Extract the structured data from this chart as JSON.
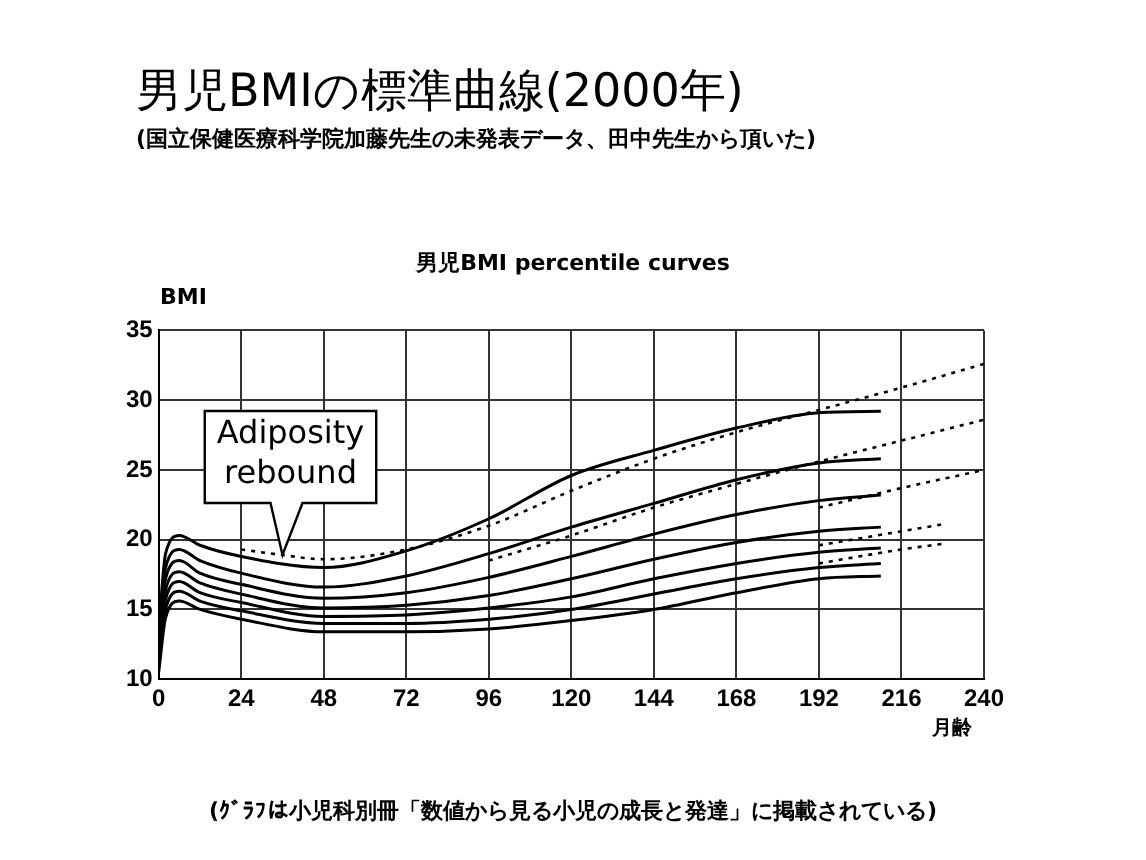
{
  "chart_data": {
    "type": "line",
    "title": "男児BMIの標準曲線(2000年)",
    "subtitle": "(国立保健医療科学院加藤先生の未発表データ、田中先生から頂いた)",
    "xlabel": "月齢",
    "ylabel": "BMI",
    "annotations": [
      "男児BMI percentile curves",
      {
        "text": "Adiposity rebound",
        "x": 36,
        "y": 18.9
      },
      "(ｸﾞﾗﾌは小児科別冊「数値から見る小児の成長と発達」に掲載されている)"
    ],
    "xlim": [
      0,
      240
    ],
    "xticks": [
      0,
      24,
      48,
      72,
      96,
      120,
      144,
      168,
      192,
      216,
      240
    ],
    "ylim": [
      10,
      35
    ],
    "yticks": [
      10,
      15,
      20,
      25,
      30,
      35
    ],
    "grid": true,
    "legend": false,
    "marker": "none",
    "series": [
      {
        "color": "#000000",
        "line_style": "solid",
        "x": [
          0,
          2,
          6,
          12,
          24,
          48,
          72,
          96,
          120,
          144,
          168,
          192,
          210
        ],
        "values": [
          13.5,
          19.0,
          20.3,
          19.6,
          18.8,
          18.0,
          19.2,
          21.5,
          24.6,
          26.4,
          28.0,
          29.1,
          29.2
        ]
      },
      {
        "color": "#000000",
        "line_style": "solid",
        "x": [
          0,
          2,
          6,
          12,
          24,
          48,
          72,
          96,
          120,
          144,
          168,
          192,
          210
        ],
        "values": [
          13.0,
          18.0,
          19.3,
          18.5,
          17.6,
          16.6,
          17.4,
          19.0,
          20.9,
          22.6,
          24.3,
          25.5,
          25.8
        ]
      },
      {
        "color": "#000000",
        "line_style": "solid",
        "x": [
          0,
          2,
          6,
          12,
          24,
          48,
          72,
          96,
          120,
          144,
          168,
          192,
          210
        ],
        "values": [
          12.5,
          17.2,
          18.5,
          17.6,
          16.8,
          15.8,
          16.2,
          17.3,
          18.8,
          20.4,
          21.8,
          22.8,
          23.2
        ]
      },
      {
        "color": "#000000",
        "line_style": "solid",
        "x": [
          0,
          2,
          6,
          12,
          24,
          48,
          72,
          96,
          120,
          144,
          168,
          192,
          210
        ],
        "values": [
          12.0,
          16.4,
          17.7,
          16.9,
          16.1,
          15.1,
          15.3,
          16.0,
          17.2,
          18.6,
          19.8,
          20.6,
          20.9
        ]
      },
      {
        "color": "#000000",
        "line_style": "solid",
        "x": [
          0,
          2,
          6,
          12,
          24,
          48,
          72,
          96,
          120,
          144,
          168,
          192,
          210
        ],
        "values": [
          11.5,
          15.7,
          17.0,
          16.2,
          15.5,
          14.5,
          14.6,
          15.1,
          15.9,
          17.2,
          18.3,
          19.1,
          19.4
        ]
      },
      {
        "color": "#000000",
        "line_style": "solid",
        "x": [
          0,
          2,
          6,
          12,
          24,
          48,
          72,
          96,
          120,
          144,
          168,
          192,
          210
        ],
        "values": [
          11.0,
          15.0,
          16.3,
          15.6,
          14.9,
          14.0,
          14.0,
          14.3,
          15.0,
          16.1,
          17.2,
          18.0,
          18.3
        ]
      },
      {
        "color": "#000000",
        "line_style": "solid",
        "x": [
          0,
          2,
          6,
          12,
          24,
          48,
          72,
          96,
          120,
          144,
          168,
          192,
          210
        ],
        "values": [
          10.5,
          14.4,
          15.6,
          15.0,
          14.3,
          13.4,
          13.4,
          13.6,
          14.2,
          15.0,
          16.2,
          17.2,
          17.4
        ]
      },
      {
        "color": "#000000",
        "line_style": "dotted",
        "x": [
          24,
          36,
          48,
          72,
          96,
          120,
          144,
          168,
          192,
          216,
          240
        ],
        "values": [
          19.3,
          18.9,
          18.6,
          19.3,
          21.0,
          23.5,
          25.8,
          27.7,
          29.3,
          30.9,
          32.6
        ]
      },
      {
        "color": "#000000",
        "line_style": "dotted",
        "x": [
          96,
          120,
          144,
          168,
          192,
          216,
          240
        ],
        "values": [
          18.5,
          20.3,
          22.3,
          24.0,
          25.6,
          27.1,
          28.6
        ]
      },
      {
        "color": "#000000",
        "line_style": "dotted",
        "x": [
          192,
          216,
          240
        ],
        "values": [
          22.3,
          23.7,
          25.0
        ]
      },
      {
        "color": "#000000",
        "line_style": "dotted",
        "x": [
          192,
          216,
          228
        ],
        "values": [
          19.6,
          20.6,
          21.1
        ]
      },
      {
        "color": "#000000",
        "line_style": "dotted",
        "x": [
          192,
          216,
          228
        ],
        "values": [
          18.3,
          19.3,
          19.7
        ]
      }
    ]
  }
}
